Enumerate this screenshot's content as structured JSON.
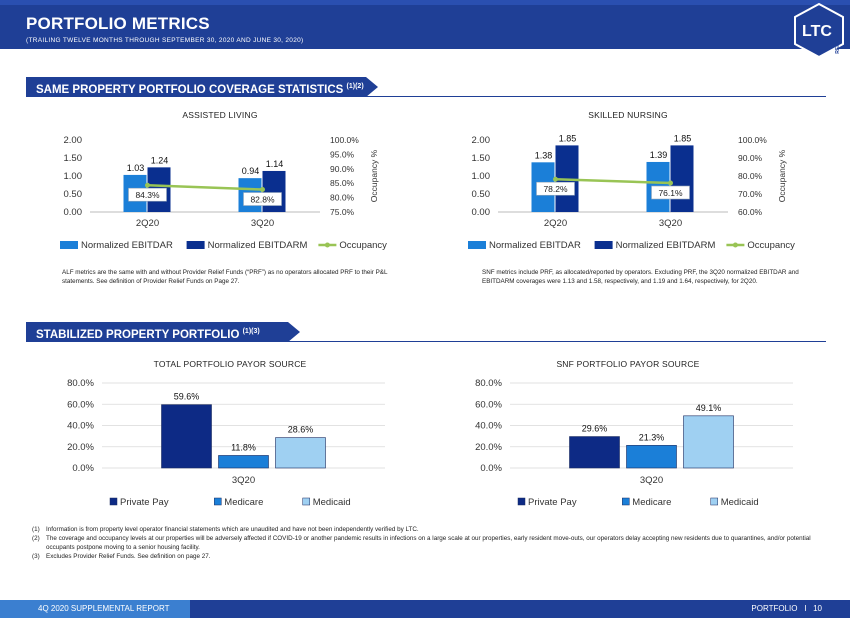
{
  "header": {
    "title": "PORTFOLIO METRICS",
    "subtitle": "(TRAILING TWELVE MONTHS THROUGH SEPTEMBER 30, 2020 AND JUNE 30, 2020)",
    "logo_text": "LTC",
    "logo_subtext": "REIT"
  },
  "sections": {
    "same_property": "SAME PROPERTY PORTFOLIO COVERAGE STATISTICS",
    "same_property_sup": "(1)(2)",
    "stabilized": "STABILIZED PROPERTY PORTFOLIO",
    "stabilized_sup": "(1)(3)"
  },
  "notes": {
    "alf": "ALF metrics are the same with and without Provider Relief Funds (“PRF”) as no operators allocated PRF to their P&L statements. See definition of Provider Relief Funds on Page 27.",
    "snf": "SNF metrics include PRF, as allocated/reported by operators. Excluding PRF, the 3Q20 normalized EBITDAR and EBITDARM coverages were 1.13 and 1.58, respectively, and 1.19 and 1.64, respectively, for 2Q20."
  },
  "footnotes": [
    {
      "num": "(1)",
      "text": "Information is from property level operator financial statements which are unaudited and have not been independently verified by LTC."
    },
    {
      "num": "(2)",
      "text": "The coverage and occupancy levels at our properties will be adversely affected if COVID-19 or another pandemic results in infections on a large scale at our properties, early resident move-outs, our operators delay accepting new residents due to quarantines, and/or potential occupants postpone moving to a senior housing facility."
    },
    {
      "num": "(3)",
      "text": "Excludes Provider Relief Funds. See definition on page 27."
    }
  ],
  "footer": {
    "left": "4Q 2020 SUPPLEMENTAL REPORT",
    "section": "PORTFOLIO",
    "separator": "I",
    "page": "10"
  },
  "colors": {
    "navy": "#1f3f96",
    "ebitdar": "#1b7fd8",
    "ebitdarm": "#0a2f8f",
    "occupancy": "#99c455",
    "private_pay": "#0d2a85",
    "medicare": "#1b7fd8",
    "medicaid": "#9fd0f2"
  },
  "chart_data": [
    {
      "type": "bar",
      "title": "ASSISTED LIVING",
      "categories": [
        "2Q20",
        "3Q20"
      ],
      "series": [
        {
          "name": "Normalized EBITDAR",
          "values": [
            1.03,
            0.94
          ]
        },
        {
          "name": "Normalized EBITDARM",
          "values": [
            1.24,
            1.14
          ]
        },
        {
          "name": "Occupancy",
          "kind": "line",
          "axis": "right",
          "values": [
            84.3,
            82.8
          ],
          "labels": [
            "84.3%",
            "82.8%"
          ]
        }
      ],
      "value_labels": [
        [
          "1.03",
          "0.94"
        ],
        [
          "1.24",
          "1.14"
        ]
      ],
      "ylim": [
        0,
        2
      ],
      "yticks": [
        "0.00",
        "0.50",
        "1.00",
        "1.50",
        "2.00"
      ],
      "y2lim": [
        75,
        100
      ],
      "y2ticks": [
        "75.0%",
        "80.0%",
        "85.0%",
        "90.0%",
        "95.0%",
        "100.0%"
      ],
      "y2label": "Occupancy %",
      "legend": "bottom"
    },
    {
      "type": "bar",
      "title": "SKILLED NURSING",
      "categories": [
        "2Q20",
        "3Q20"
      ],
      "series": [
        {
          "name": "Normalized EBITDAR",
          "values": [
            1.38,
            1.39
          ]
        },
        {
          "name": "Normalized EBITDARM",
          "values": [
            1.85,
            1.85
          ]
        },
        {
          "name": "Occupancy",
          "kind": "line",
          "axis": "right",
          "values": [
            78.2,
            76.1
          ],
          "labels": [
            "78.2%",
            "76.1%"
          ]
        }
      ],
      "value_labels": [
        [
          "1.38",
          "1.39"
        ],
        [
          "1.85",
          "1.85"
        ]
      ],
      "ylim": [
        0,
        2
      ],
      "yticks": [
        "0.00",
        "0.50",
        "1.00",
        "1.50",
        "2.00"
      ],
      "y2lim": [
        60,
        100
      ],
      "y2ticks": [
        "60.0%",
        "70.0%",
        "80.0%",
        "90.0%",
        "100.0%"
      ],
      "y2label": "Occupancy %",
      "legend": "bottom"
    },
    {
      "type": "bar",
      "title": "TOTAL PORTFOLIO PAYOR SOURCE",
      "categories": [
        "3Q20"
      ],
      "series": [
        {
          "name": "Private Pay",
          "values": [
            59.6
          ],
          "label": "59.6%"
        },
        {
          "name": "Medicare",
          "values": [
            11.8
          ],
          "label": "11.8%"
        },
        {
          "name": "Medicaid",
          "values": [
            28.6
          ],
          "label": "28.6%"
        }
      ],
      "ylim": [
        0,
        80
      ],
      "yticks": [
        "0.0%",
        "20.0%",
        "40.0%",
        "60.0%",
        "80.0%"
      ],
      "legend": "bottom"
    },
    {
      "type": "bar",
      "title": "SNF PORTFOLIO PAYOR SOURCE",
      "categories": [
        "3Q20"
      ],
      "series": [
        {
          "name": "Private Pay",
          "values": [
            29.6
          ],
          "label": "29.6%"
        },
        {
          "name": "Medicare",
          "values": [
            21.3
          ],
          "label": "21.3%"
        },
        {
          "name": "Medicaid",
          "values": [
            49.1
          ],
          "label": "49.1%"
        }
      ],
      "ylim": [
        0,
        80
      ],
      "yticks": [
        "0.0%",
        "20.0%",
        "40.0%",
        "60.0%",
        "80.0%"
      ],
      "legend": "bottom"
    }
  ]
}
